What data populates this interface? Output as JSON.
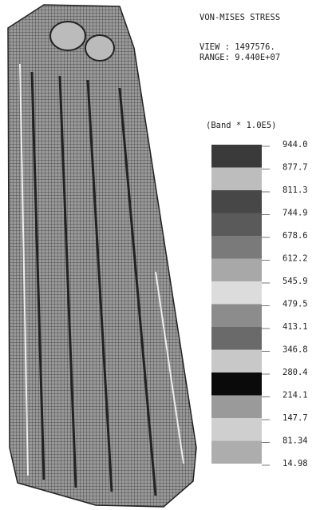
{
  "header": {
    "title": "VON-MISES STRESS",
    "view": "VIEW : 1497576.",
    "range": "RANGE: 9.440E+07"
  },
  "legend": {
    "caption": "(Band * 1.0E5)",
    "labels": [
      "944.0",
      "877.7",
      "811.3",
      "744.9",
      "678.6",
      "612.2",
      "545.9",
      "479.5",
      "413.1",
      "346.8",
      "280.4",
      "214.1",
      "147.7",
      "81.34",
      "14.98"
    ],
    "band_colors": [
      "#3a3a3a",
      "#bdbdbd",
      "#474747",
      "#5a5a5a",
      "#7a7a7a",
      "#a8a8a8",
      "#dcdcdc",
      "#8c8c8c",
      "#6a6a6a",
      "#c8c8c8",
      "#0a0a0a",
      "#9a9a9a",
      "#cfcfcf",
      "#adadad"
    ]
  }
}
